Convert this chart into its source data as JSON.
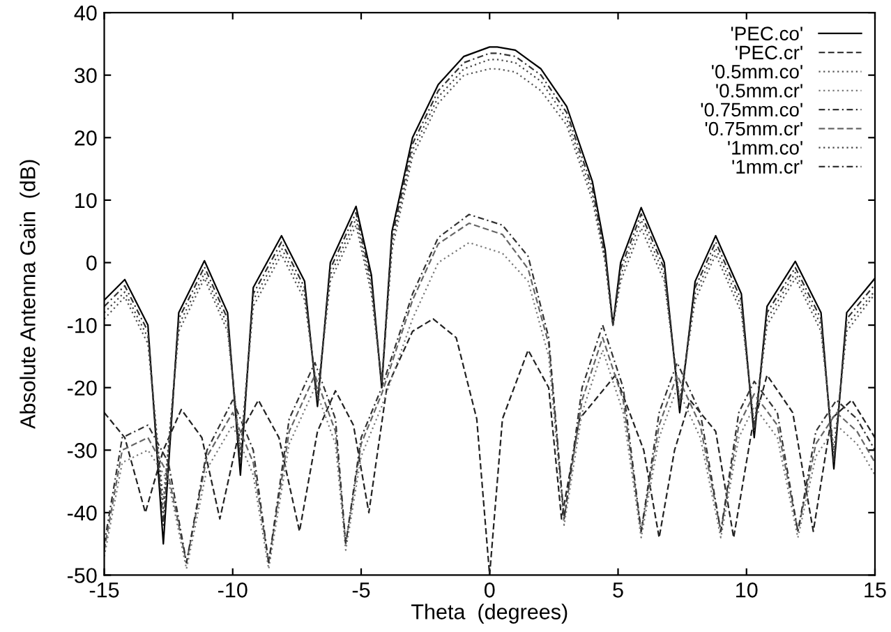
{
  "chart_data": {
    "type": "line",
    "xlabel": "Theta  (degrees)",
    "ylabel": "Absolute Antenna Gain  (dB)",
    "xlim": [
      -15,
      15
    ],
    "ylim": [
      -50,
      40
    ],
    "xticks": [
      -15,
      -10,
      -5,
      0,
      5,
      10,
      15
    ],
    "yticks": [
      -50,
      -40,
      -30,
      -20,
      -10,
      0,
      10,
      20,
      30,
      40
    ],
    "grid": false,
    "legend": "top right",
    "series": [
      {
        "name": "'PEC.co'",
        "color": "#000000",
        "line_style": "solid",
        "x": [
          -15,
          -14.2,
          -13.3,
          -12.7,
          -12.1,
          -11.1,
          -10.2,
          -9.7,
          -9.2,
          -8.1,
          -7.2,
          -6.7,
          -6.2,
          -5.2,
          -4.6,
          -4.2,
          -3.8,
          -3,
          -2,
          -1,
          0,
          0.3,
          1,
          2,
          3,
          4,
          4.5,
          4.8,
          5.1,
          5.9,
          6.8,
          7.4,
          8,
          8.8,
          9.8,
          10.3,
          10.8,
          11.9,
          12.9,
          13.4,
          13.9,
          15
        ],
        "values": [
          -6,
          -2.7,
          -10,
          -45,
          -8,
          0.3,
          -8,
          -34,
          -4,
          4.3,
          -3,
          -23,
          0,
          9,
          -2,
          -20,
          5,
          20,
          28.5,
          33,
          34.5,
          34.5,
          34,
          31,
          25,
          13,
          2,
          -10,
          0,
          8.8,
          0,
          -24,
          -3,
          4.3,
          -5,
          -28,
          -7,
          0.2,
          -8,
          -33,
          -8,
          -2.5
        ]
      },
      {
        "name": "'PEC.cr'",
        "color": "#222222",
        "line_style": "dashed",
        "x": [
          -15,
          -14.2,
          -13.4,
          -12.7,
          -12,
          -11.2,
          -10.5,
          -9.8,
          -9,
          -8.2,
          -7.4,
          -6.7,
          -6,
          -5.3,
          -4.7,
          -4,
          -3,
          -2.2,
          -1.3,
          -0.5,
          0,
          0.5,
          1.5,
          2.3,
          2.8,
          3.5,
          4.9,
          6,
          6.6,
          7.2,
          7.8,
          8.8,
          9.5,
          10.2,
          10.8,
          11.8,
          12.6,
          13.3,
          14.1,
          15
        ],
        "values": [
          -24,
          -28,
          -40,
          -30,
          -23.5,
          -28,
          -41,
          -28,
          -22,
          -28,
          -43,
          -27,
          -20.5,
          -26,
          -40,
          -20,
          -11,
          -9,
          -12,
          -25,
          -50,
          -25,
          -14,
          -20,
          -41,
          -25,
          -18,
          -30,
          -44,
          -30,
          -22,
          -27,
          -44,
          -27,
          -18,
          -24,
          -43,
          -25,
          -22,
          -28
        ]
      },
      {
        "name": "'0.5mm.co'",
        "color": "#555555",
        "line_style": "dotted",
        "x": [
          -15,
          -14.2,
          -13.3,
          -12.7,
          -12.1,
          -11.1,
          -10.2,
          -9.7,
          -9.2,
          -8.1,
          -7.2,
          -6.7,
          -6.2,
          -5.2,
          -4.6,
          -4.2,
          -3.8,
          -3,
          -2,
          -1,
          0,
          0.3,
          1,
          2,
          3,
          4,
          4.5,
          4.8,
          5.1,
          5.9,
          6.8,
          7.4,
          8,
          8.8,
          9.8,
          10.3,
          10.8,
          11.9,
          12.9,
          13.4,
          13.9,
          15
        ],
        "values": [
          -9,
          -5.5,
          -13,
          -38,
          -11,
          -2.5,
          -11,
          -30,
          -7,
          1.3,
          -6,
          -21,
          -3,
          6,
          -5,
          -19,
          2,
          17,
          25.5,
          30,
          31,
          31,
          30.5,
          27.5,
          22,
          10,
          0,
          -10,
          -3,
          5.5,
          -3,
          -22,
          -6,
          1.3,
          -8,
          -26,
          -10,
          -2.5,
          -11,
          -30,
          -11,
          -5
        ]
      },
      {
        "name": "'0.5mm.cr'",
        "color": "#777777",
        "line_style": "dotted",
        "x": [
          -15,
          -14.3,
          -13.3,
          -12.5,
          -11.8,
          -11,
          -10,
          -9.2,
          -8.6,
          -7.8,
          -6.8,
          -6,
          -5.6,
          -5,
          -4.2,
          -3,
          -2,
          -0.8,
          0.5,
          1.5,
          2.3,
          2.9,
          3.6,
          4.4,
          5.2,
          5.9,
          6.6,
          7.3,
          8.2,
          9,
          9.7,
          10.3,
          11.2,
          12,
          12.7,
          13.5,
          14.3,
          15
        ],
        "values": [
          -47,
          -32,
          -30,
          -35,
          -49,
          -33,
          -26,
          -34,
          -49,
          -29,
          -20,
          -29,
          -46,
          -31,
          -23,
          -9,
          0,
          3.2,
          1.5,
          -3,
          -15,
          -42,
          -24,
          -14,
          -24,
          -44,
          -28,
          -20,
          -28,
          -44,
          -28,
          -23,
          -28,
          -44,
          -31,
          -26,
          -29,
          -34
        ]
      },
      {
        "name": "'0.75mm.co'",
        "color": "#333333",
        "line_style": "dashdot",
        "x": [
          -15,
          -14.2,
          -13.3,
          -12.7,
          -12.1,
          -11.1,
          -10.2,
          -9.7,
          -9.2,
          -8.1,
          -7.2,
          -6.7,
          -6.2,
          -5.2,
          -4.6,
          -4.2,
          -3.8,
          -3,
          -2,
          -1,
          0,
          0.3,
          1,
          2,
          3,
          4,
          4.5,
          4.8,
          5.1,
          5.9,
          6.8,
          7.4,
          8,
          8.8,
          9.8,
          10.3,
          10.8,
          11.9,
          12.9,
          13.4,
          13.9,
          15
        ],
        "values": [
          -7,
          -3.7,
          -11,
          -42,
          -9,
          -0.7,
          -9,
          -32,
          -5,
          3.3,
          -4,
          -22,
          -1,
          8,
          -3,
          -19.5,
          4,
          19,
          27.5,
          32,
          33.5,
          33.5,
          33,
          30,
          24,
          12,
          1,
          -10,
          -1,
          7.8,
          -1,
          -23,
          -4,
          3.3,
          -6,
          -27,
          -8,
          -0.8,
          -9,
          -32,
          -9,
          -3.5
        ]
      },
      {
        "name": "'0.75mm.cr'",
        "color": "#666666",
        "line_style": "dashed",
        "x": [
          -15,
          -14.3,
          -13.3,
          -12.5,
          -11.8,
          -11,
          -10,
          -9.2,
          -8.6,
          -7.8,
          -6.8,
          -6,
          -5.6,
          -5,
          -4.2,
          -3,
          -2,
          -0.8,
          0.5,
          1.5,
          2.3,
          2.9,
          3.6,
          4.4,
          5.2,
          5.9,
          6.6,
          7.3,
          8.2,
          9,
          9.7,
          10.3,
          11.2,
          12,
          12.7,
          13.5,
          14.3,
          15
        ],
        "values": [
          -46,
          -30,
          -28,
          -34,
          -48,
          -31,
          -24,
          -32,
          -48,
          -27,
          -18,
          -27,
          -45,
          -29,
          -21,
          -6,
          3,
          6.3,
          4.5,
          -1,
          -13,
          -41,
          -22,
          -12,
          -22,
          -43,
          -26,
          -18,
          -26,
          -43,
          -26,
          -21,
          -26,
          -43,
          -29,
          -24,
          -27,
          -32
        ]
      },
      {
        "name": "'1mm.co'",
        "color": "#444444",
        "line_style": "dotted",
        "x": [
          -15,
          -14.2,
          -13.3,
          -12.7,
          -12.1,
          -11.1,
          -10.2,
          -9.7,
          -9.2,
          -8.1,
          -7.2,
          -6.7,
          -6.2,
          -5.2,
          -4.6,
          -4.2,
          -3.8,
          -3,
          -2,
          -1,
          0,
          0.3,
          1,
          2,
          3,
          4,
          4.5,
          4.8,
          5.1,
          5.9,
          6.8,
          7.4,
          8,
          8.8,
          9.8,
          10.3,
          10.8,
          11.9,
          12.9,
          13.4,
          13.9,
          15
        ],
        "values": [
          -8,
          -4.7,
          -12,
          -40,
          -10,
          -1.7,
          -10,
          -31,
          -6,
          2.3,
          -5,
          -21.5,
          -2,
          7,
          -4,
          -19,
          3,
          18,
          26.5,
          31,
          32.5,
          32.5,
          32,
          29,
          23,
          11,
          0.5,
          -10,
          -2,
          6.8,
          -2,
          -22.5,
          -5,
          2.3,
          -7,
          -26.5,
          -9,
          -1.6,
          -10,
          -31,
          -10,
          -4.5
        ]
      },
      {
        "name": "'1mm.cr'",
        "color": "#333333",
        "line_style": "dashdot",
        "x": [
          -15,
          -14.3,
          -13.3,
          -12.5,
          -11.8,
          -11,
          -10,
          -9.2,
          -8.6,
          -7.8,
          -6.8,
          -6,
          -5.6,
          -5,
          -4.2,
          -3,
          -2,
          -0.8,
          0.5,
          1.5,
          2.3,
          2.9,
          3.6,
          4.4,
          5.2,
          5.9,
          6.6,
          7.3,
          8.2,
          9,
          9.7,
          10.3,
          11.2,
          12,
          12.7,
          13.5,
          14.3,
          15
        ],
        "values": [
          -45,
          -28,
          -26,
          -32,
          -48,
          -30,
          -22,
          -30,
          -48,
          -25,
          -16,
          -25,
          -45,
          -28,
          -20,
          -5,
          4,
          7.7,
          6,
          1,
          -12,
          -41,
          -20,
          -10,
          -20,
          -43,
          -24,
          -16,
          -24,
          -43,
          -24,
          -19,
          -24,
          -43,
          -27,
          -22,
          -25,
          -30
        ]
      }
    ]
  }
}
